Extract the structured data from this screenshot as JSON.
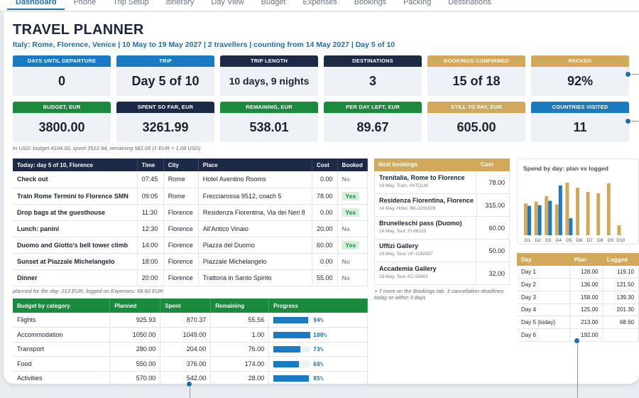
{
  "nav": {
    "tabs": [
      {
        "label": "Dashboard",
        "active": true
      },
      {
        "label": "Phone"
      },
      {
        "label": "Trip Setup"
      },
      {
        "label": "Itinerary"
      },
      {
        "label": "Day View"
      },
      {
        "label": "Budget"
      },
      {
        "label": "Expenses"
      },
      {
        "label": "Bookings"
      },
      {
        "label": "Packing"
      },
      {
        "label": "Destinations"
      }
    ]
  },
  "header": {
    "title": "TRAVEL PLANNER",
    "subtitle": "Italy: Rome, Florence, Venice  |  10 May to 19 May 2027  |  2 travellers  |  counting from 14 May 2027  |  Day 5 of 10"
  },
  "stats": [
    {
      "label": "DAYS UNTIL DEPARTURE",
      "value": "0",
      "color": "blue"
    },
    {
      "label": "TRIP",
      "value": "Day 5 of 10",
      "color": "blue"
    },
    {
      "label": "TRIP LENGTH",
      "value": "10 days, 9 nights",
      "color": "navy"
    },
    {
      "label": "DESTINATIONS",
      "value": "3",
      "color": "navy"
    },
    {
      "label": "BOOKINGS CONFIRMED",
      "value": "15 of 18",
      "color": "gold"
    },
    {
      "label": "PACKED",
      "value": "92%",
      "color": "gold"
    },
    {
      "label": "BUDGET, EUR",
      "value": "3800.00",
      "color": "green"
    },
    {
      "label": "SPENT SO FAR, EUR",
      "value": "3261.99",
      "color": "navy"
    },
    {
      "label": "REMAINING, EUR",
      "value": "538.01",
      "color": "green"
    },
    {
      "label": "PER DAY LEFT, EUR",
      "value": "89.67",
      "color": "green"
    },
    {
      "label": "STILL TO PAY, EUR",
      "value": "605.00",
      "color": "gold"
    },
    {
      "label": "COUNTRIES VISITED",
      "value": "11",
      "color": "blue"
    }
  ],
  "usd_note": "In USD: budget 4104.00, spent 3522.94, remaining 581.06 (1 EUR = 1.08 USD)",
  "today": {
    "headers": [
      "Today: day 5 of 10, Florence",
      "Time",
      "City",
      "Place",
      "Cost",
      "Booked"
    ],
    "rows": [
      {
        "event": "Check out",
        "time": "07:45",
        "city": "Rome",
        "place": "Hotel Aventino Rooms",
        "cost": "0.00",
        "booked": "No"
      },
      {
        "event": "Train Rome Termini to Florence SMN",
        "time": "09:05",
        "city": "Rome",
        "place": "Frecciarossa 9512, coach 5",
        "cost": "78.00",
        "booked": "Yes"
      },
      {
        "event": "Drop bags at the guesthouse",
        "time": "11:30",
        "city": "Florence",
        "place": "Residenza Fiorentina, Via dei Neri 8",
        "cost": "0.00",
        "booked": "Yes"
      },
      {
        "event": "Lunch: panini",
        "time": "12:30",
        "city": "Florence",
        "place": "All'Antico Vinaio",
        "cost": "20.00",
        "booked": "No"
      },
      {
        "event": "Duomo and Giotto's bell tower climb",
        "time": "14:00",
        "city": "Florence",
        "place": "Piazza del Duomo",
        "cost": "60.00",
        "booked": "Yes"
      },
      {
        "event": "Sunset at Piazzale Michelangelo",
        "time": "18:00",
        "city": "Florence",
        "place": "Piazzale Michelangelo",
        "cost": "0.00",
        "booked": "No"
      },
      {
        "event": "Dinner",
        "time": "20:00",
        "city": "Florence",
        "place": "Trattoria in Santo Spirito",
        "cost": "55.00",
        "booked": "No"
      }
    ],
    "note": "planned for the day: 213 EUR, logged on Expenses: 68.60 EUR"
  },
  "budget": {
    "headers": [
      "Budget by category",
      "Planned",
      "Spent",
      "Remaining",
      "Progress"
    ],
    "rows": [
      {
        "category": "Flights",
        "planned": "925.93",
        "spent": "870.37",
        "remaining": "55.56",
        "progress": 0.94,
        "pct": "94%"
      },
      {
        "category": "Accommodation",
        "planned": "1050.00",
        "spent": "1049.00",
        "remaining": "1.00",
        "progress": 1.0,
        "pct": "100%"
      },
      {
        "category": "Transport",
        "planned": "280.00",
        "spent": "204.00",
        "remaining": "76.00",
        "progress": 0.73,
        "pct": "73%"
      },
      {
        "category": "Food",
        "planned": "550.00",
        "spent": "376.00",
        "remaining": "174.00",
        "progress": 0.68,
        "pct": "68%"
      },
      {
        "category": "Activities",
        "planned": "570.00",
        "spent": "542.00",
        "remaining": "28.00",
        "progress": 0.95,
        "pct": "95%"
      }
    ]
  },
  "bookings": {
    "headers": [
      "Next bookings",
      "Cost"
    ],
    "rows": [
      {
        "name": "Trenitalia, Rome to Florence",
        "sub": "14 May, Train, 4XTQLM",
        "cost": "78.00"
      },
      {
        "name": "Residenza Fiorentina, Florence",
        "sub": "14 May, Hotel, BK-2231009",
        "cost": "315.00"
      },
      {
        "name": "Brunelleschi pass (Duomo)",
        "sub": "14 May, Tour, FI-88120",
        "cost": "60.00"
      },
      {
        "name": "Uffizi Gallery",
        "sub": "15 May, Tour, UF-1192837",
        "cost": "50.00"
      },
      {
        "name": "Accademia Gallery",
        "sub": "15 May, Tour, AC-55801",
        "cost": "32.00"
      }
    ],
    "note": "+ 7 more on the Bookings tab. 3 cancellation deadlines today or within 3 days"
  },
  "chart_data": {
    "type": "bar",
    "title": "Spend by day: plan vs logged",
    "categories": [
      "D1",
      "D2",
      "D3",
      "D4",
      "D5",
      "D6",
      "D7",
      "D8",
      "D9",
      "D10"
    ],
    "series": [
      {
        "name": "plan",
        "values": [
          128,
          136,
          158,
          125,
          213,
          192,
          175,
          170,
          210,
          40
        ]
      },
      {
        "name": "logged",
        "values": [
          119.1,
          121.5,
          139.3,
          201.3,
          68.6,
          null,
          null,
          null,
          null,
          null
        ]
      }
    ],
    "ylim": [
      0,
      230
    ],
    "colors": {
      "plan": "#d2a95b",
      "logged": "#1a7ac4"
    }
  },
  "plan_table": {
    "headers": [
      "Day",
      "Plan",
      "Logged"
    ],
    "rows": [
      {
        "day": "Day 1",
        "plan": "128.00",
        "logged": "119.10"
      },
      {
        "day": "Day 2",
        "plan": "136.00",
        "logged": "121.50"
      },
      {
        "day": "Day 3",
        "plan": "158.00",
        "logged": "139.30"
      },
      {
        "day": "Day 4",
        "plan": "125.00",
        "logged": "201.30"
      },
      {
        "day": "Day 5 (today)",
        "plan": "213.00",
        "logged": "68.60"
      },
      {
        "day": "Day 6",
        "plan": "192.00",
        "logged": ""
      }
    ]
  }
}
